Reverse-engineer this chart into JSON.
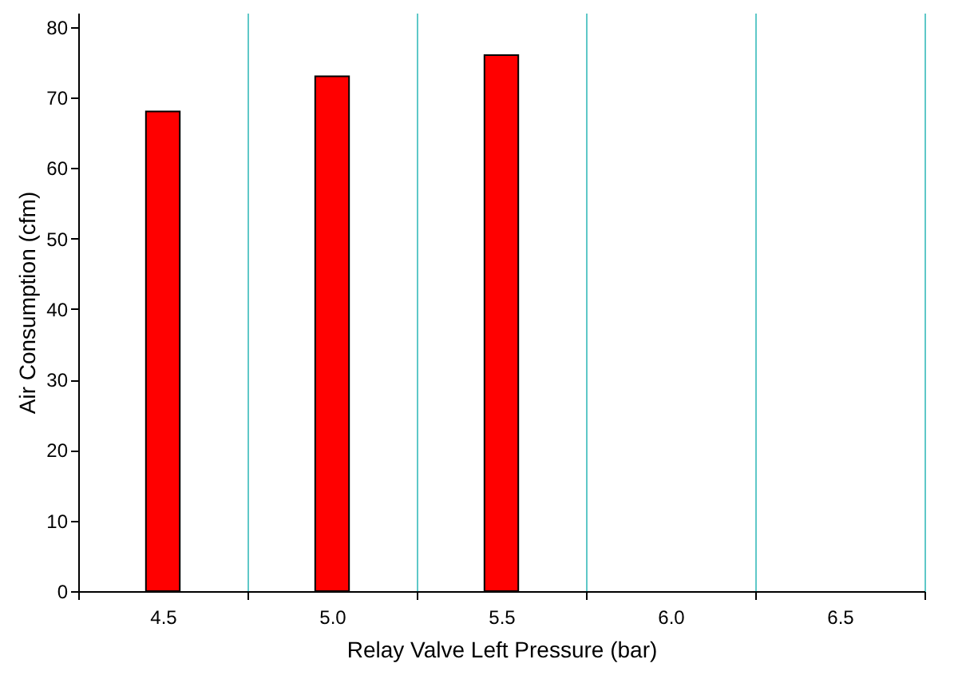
{
  "chart_data": {
    "type": "bar",
    "xlabel": "Relay Valve Left Pressure (bar)",
    "ylabel": "Air Consumption (cfm)",
    "categories": [
      "4.5",
      "5.0",
      "5.5",
      "6.0",
      "6.5"
    ],
    "values": [
      68,
      73,
      76,
      null,
      null
    ],
    "color": "#ff0000",
    "ylim": [
      0,
      82
    ],
    "yticks": [
      0,
      10,
      20,
      30,
      40,
      50,
      60,
      70,
      80
    ],
    "grid": "x"
  }
}
